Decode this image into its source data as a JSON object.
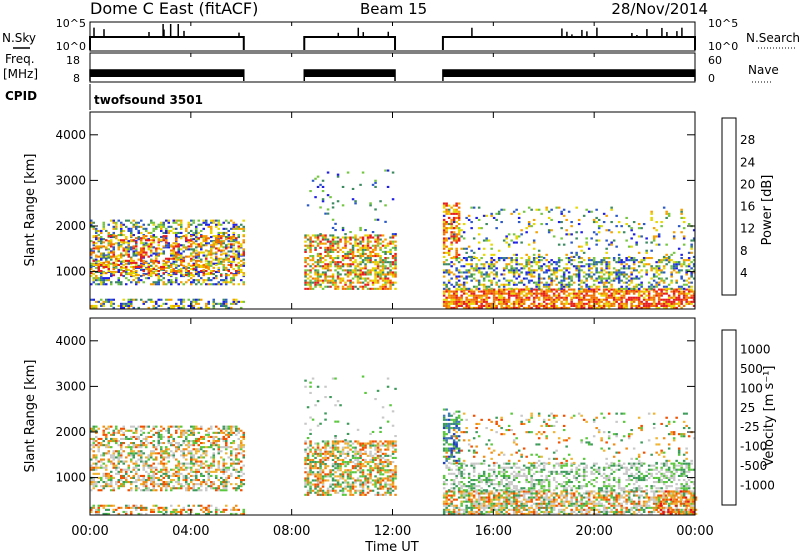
{
  "header": {
    "title": "Dome C East (fitACF)",
    "beam": "Beam 15",
    "date": "28/Nov/2014"
  },
  "top_panels": {
    "nsky_label": "N.Sky",
    "nsky_ticks": [
      "10^5",
      "10^0"
    ],
    "nsearch_label": "N.Search",
    "nsearch_ticks": [
      "10^5",
      "10^0"
    ],
    "freq_label_1": "Freq.",
    "freq_label_2": "[MHz]",
    "freq_ticks": [
      "18",
      "8"
    ],
    "nave_label": "Nave",
    "nave_ticks": [
      "60",
      "0"
    ],
    "cpid_label": "CPID",
    "cpid_value": "twofsound 3501"
  },
  "chart_data": [
    {
      "type": "heatmap",
      "name": "power",
      "ylabel": "Slant Range [km]",
      "yticks": [
        "1000",
        "2000",
        "3000",
        "4000"
      ],
      "ylim": [
        180,
        4500
      ],
      "xlim_hours": [
        0,
        24
      ],
      "colorbar_label": "Power [dB]",
      "colorbar_ticks": [
        "4",
        "8",
        "12",
        "16",
        "20",
        "24",
        "28"
      ],
      "colorbar_colors": [
        "#1e1ee6",
        "#2a58c8",
        "#3c8a60",
        "#74c640",
        "#e6d800",
        "#f4a000",
        "#f07000",
        "#e61e1e"
      ],
      "data_intervals_hours": [
        [
          0,
          6.1
        ],
        [
          8.5,
          12.1
        ],
        [
          14.0,
          24.0
        ]
      ]
    },
    {
      "type": "heatmap",
      "name": "velocity",
      "ylabel": "Slant Range [km]",
      "yticks": [
        "1000",
        "2000",
        "3000",
        "4000"
      ],
      "ylim": [
        180,
        4500
      ],
      "xlim_hours": [
        0,
        24
      ],
      "colorbar_label": "Velocity [m s⁻¹]",
      "colorbar_ticks": [
        "1000",
        "500",
        "100",
        "25",
        "-25",
        "-100",
        "-500",
        "-1000"
      ],
      "colorbar_colors": [
        "#2040c0",
        "#3c7ab4",
        "#3c9a5a",
        "#5ac83c",
        "#c8c8c8",
        "#f0b432",
        "#f08c14",
        "#f05000",
        "#e61414"
      ],
      "data_intervals_hours": [
        [
          0,
          6.1
        ],
        [
          8.5,
          12.1
        ],
        [
          14.0,
          24.0
        ]
      ]
    }
  ],
  "xaxis": {
    "ticks": [
      "00:00",
      "04:00",
      "08:00",
      "12:00",
      "16:00",
      "20:00",
      "00:00"
    ],
    "label": "Time UT"
  }
}
